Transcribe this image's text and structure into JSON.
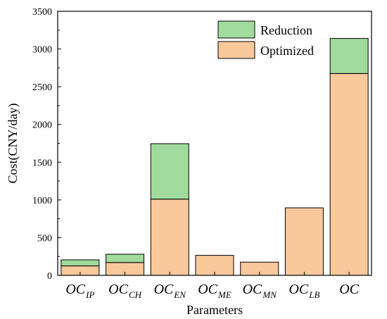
{
  "chart_data": {
    "type": "bar",
    "stacked": true,
    "categories": [
      {
        "main": "OC",
        "sub": "IP"
      },
      {
        "main": "OC",
        "sub": "CH"
      },
      {
        "main": "OC",
        "sub": "EN"
      },
      {
        "main": "OC",
        "sub": "ME"
      },
      {
        "main": "OC",
        "sub": "MN"
      },
      {
        "main": "OC",
        "sub": "LB"
      },
      {
        "main": "OC",
        "sub": ""
      }
    ],
    "series": [
      {
        "name": "Optimized",
        "values": [
          125,
          170,
          1010,
          265,
          175,
          895,
          2675
        ],
        "color": "#F9C89B"
      },
      {
        "name": "Reduction",
        "values": [
          80,
          110,
          735,
          0,
          0,
          0,
          465
        ],
        "color": "#A0DA9C"
      }
    ],
    "xlabel": "Parameters",
    "ylabel": "Cost(CNY/day)",
    "ylim": [
      0,
      3500
    ],
    "yticks": [
      "0",
      "500",
      "1000",
      "1500",
      "2000",
      "2500",
      "3000",
      "3500"
    ],
    "legend_position": "top-right",
    "grid": false
  }
}
